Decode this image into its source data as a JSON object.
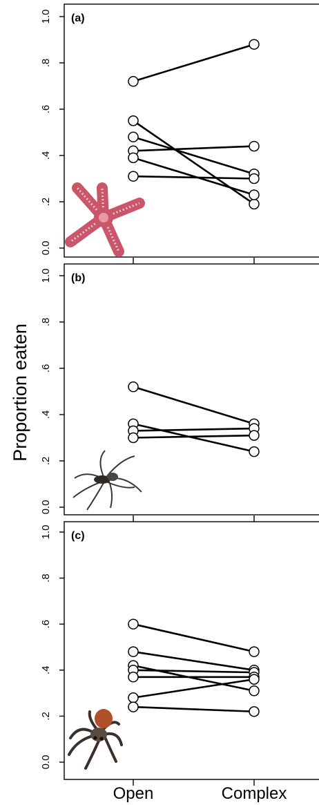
{
  "ylabel": "Proportion eaten",
  "categories": [
    "Open",
    "Complex"
  ],
  "yticks": [
    "0.0",
    ".2",
    ".4",
    ".6",
    ".8",
    "1.0"
  ],
  "chart_data": [
    {
      "type": "line",
      "panel_label": "(a)",
      "picture": "sea-star",
      "ylim": [
        0,
        1
      ],
      "categories": [
        "Open",
        "Complex"
      ],
      "series": [
        {
          "values": [
            0.72,
            0.88
          ]
        },
        {
          "values": [
            0.55,
            0.19
          ]
        },
        {
          "values": [
            0.48,
            0.32
          ]
        },
        {
          "values": [
            0.42,
            0.44
          ]
        },
        {
          "values": [
            0.39,
            0.23
          ]
        },
        {
          "values": [
            0.31,
            0.3
          ]
        }
      ]
    },
    {
      "type": "line",
      "panel_label": "(b)",
      "picture": "wolf-spider",
      "ylim": [
        0,
        1
      ],
      "categories": [
        "Open",
        "Complex"
      ],
      "series": [
        {
          "values": [
            0.52,
            0.36
          ]
        },
        {
          "values": [
            0.36,
            0.24
          ]
        },
        {
          "values": [
            0.33,
            0.34
          ]
        },
        {
          "values": [
            0.3,
            0.31
          ]
        }
      ]
    },
    {
      "type": "line",
      "panel_label": "(c)",
      "picture": "jumping-spider",
      "ylim": [
        0,
        1
      ],
      "categories": [
        "Open",
        "Complex"
      ],
      "series": [
        {
          "values": [
            0.6,
            0.48
          ]
        },
        {
          "values": [
            0.48,
            0.4
          ]
        },
        {
          "values": [
            0.42,
            0.31
          ]
        },
        {
          "values": [
            0.4,
            0.39
          ]
        },
        {
          "values": [
            0.37,
            0.37
          ]
        },
        {
          "values": [
            0.28,
            0.36
          ]
        },
        {
          "values": [
            0.24,
            0.22
          ]
        }
      ]
    }
  ]
}
